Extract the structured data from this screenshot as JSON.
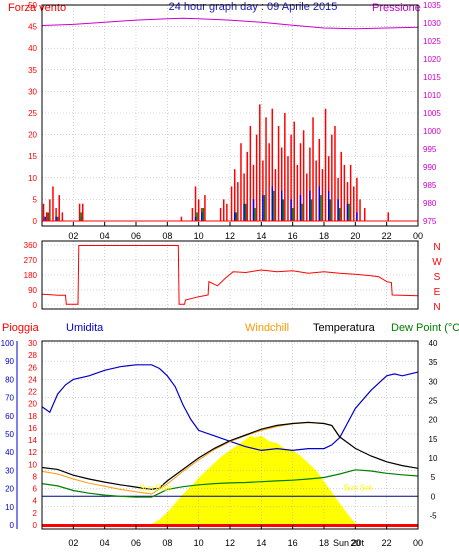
{
  "header": {
    "title": "24 hour graph day : 09 Aprile 2015",
    "left_label": "Forza vento",
    "right_label": "Pressione"
  },
  "colors": {
    "wind": "#ff0000",
    "gust": "#008000",
    "speed2": "#0000ff",
    "pressure": "#cc00cc",
    "direction": "#ff0000",
    "humidity": "#0000cc",
    "windchill": "#ff9900",
    "temperature": "#000000",
    "dewpoint": "#008000",
    "sun": "#ffff00",
    "rain": "#ff0000",
    "axis": "#000000",
    "grid": "#aaaaaa"
  },
  "chart_data": [
    {
      "type": "line",
      "name": "wind-pressure",
      "x_ticks": [
        "02",
        "04",
        "06",
        "08",
        "10",
        "12",
        "14",
        "16",
        "18",
        "20",
        "22",
        "00"
      ],
      "left_axis": {
        "label": "Forza vento",
        "ticks": [
          0,
          5,
          10,
          15,
          20,
          25,
          30,
          35,
          40,
          45,
          50
        ],
        "ylim": [
          0,
          50
        ]
      },
      "right_axis": {
        "label": "Pressione",
        "ticks": [
          975,
          980,
          985,
          990,
          995,
          1000,
          1005,
          1010,
          1015,
          1020,
          1025,
          1030,
          1035
        ],
        "ylim": [
          975,
          1035
        ]
      },
      "series": [
        {
          "name": "Pressione",
          "axis": "right",
          "x": [
            0,
            2,
            4,
            6,
            8,
            9,
            10,
            12,
            14,
            16,
            18,
            20,
            22,
            24
          ],
          "values": [
            1029.3,
            1029.6,
            1030.2,
            1030.8,
            1031.2,
            1031.3,
            1031.2,
            1030.8,
            1030.2,
            1029.4,
            1028.6,
            1028.4,
            1028.6,
            1028.8
          ]
        },
        {
          "name": "wind",
          "axis": "left",
          "x": [
            0.1,
            0.3,
            0.5,
            0.7,
            0.9,
            1.1,
            1.3,
            2.4,
            2.6,
            8.9,
            9.6,
            9.8,
            10.0,
            10.2,
            10.4,
            11.4,
            11.6,
            11.8,
            12.1,
            12.3,
            12.5,
            12.7,
            12.9,
            13.1,
            13.3,
            13.5,
            13.7,
            13.9,
            14.1,
            14.3,
            14.5,
            14.7,
            14.9,
            15.1,
            15.3,
            15.5,
            15.7,
            15.9,
            16.1,
            16.3,
            16.5,
            16.7,
            16.9,
            17.1,
            17.3,
            17.5,
            17.7,
            17.9,
            18.1,
            18.3,
            18.5,
            18.7,
            18.9,
            19.1,
            19.3,
            19.5,
            19.7,
            19.9,
            20.1,
            20.3,
            20.6,
            22.1
          ],
          "values": [
            4,
            2,
            5,
            8,
            3,
            6,
            2,
            4,
            4,
            1,
            3,
            8,
            5,
            3,
            6,
            3,
            5,
            4,
            8,
            12,
            9,
            18,
            11,
            16,
            22,
            13,
            20,
            27,
            14,
            24,
            18,
            26,
            12,
            22,
            17,
            25,
            15,
            20,
            23,
            13,
            18,
            21,
            11,
            17,
            24,
            14,
            19,
            12,
            26,
            15,
            20,
            22,
            10,
            16,
            13,
            9,
            13,
            8,
            10,
            5,
            3,
            2
          ]
        },
        {
          "name": "gust",
          "axis": "left",
          "x": [
            0.4,
            1.0,
            2.5,
            9.9,
            10.3,
            12.4,
            13.0,
            13.6,
            14.2,
            14.8,
            15.4,
            16.0,
            16.6,
            17.2,
            17.8,
            18.4,
            19.0,
            19.6
          ],
          "values": [
            2,
            1,
            2,
            2,
            3,
            2,
            4,
            3,
            6,
            7,
            5,
            3,
            4,
            5,
            6,
            5,
            3,
            4
          ]
        },
        {
          "name": "speed2",
          "axis": "left",
          "x": [
            0.2,
            0.9,
            2.5,
            9.8,
            10.2,
            12.3,
            12.9,
            13.5,
            14.1,
            14.7,
            15.3,
            15.9,
            16.5,
            17.1,
            17.7,
            18.3,
            18.9,
            19.5,
            20.1
          ],
          "values": [
            1,
            1,
            1,
            1,
            2,
            2,
            4,
            5,
            6,
            8,
            7,
            5,
            6,
            7,
            8,
            7,
            5,
            4,
            2
          ]
        }
      ]
    },
    {
      "type": "line",
      "name": "wind-direction",
      "right_labels": [
        "N",
        "W",
        "S",
        "E",
        "N"
      ],
      "left_axis": {
        "ticks": [
          0,
          90,
          180,
          270,
          360
        ],
        "ylim": [
          0,
          360
        ]
      },
      "series": [
        {
          "name": "direction",
          "x": [
            0,
            0.6,
            1.0,
            1.5,
            1.55,
            2.3,
            2.35,
            8.7,
            8.75,
            9.1,
            9.15,
            10.0,
            10.6,
            10.65,
            11.2,
            11.7,
            12.2,
            13.0,
            14.0,
            15.0,
            16.0,
            17.0,
            18.0,
            19.0,
            20.0,
            20.5,
            21.0,
            21.5,
            22.0,
            22.3,
            22.35,
            24.0
          ],
          "values": [
            65,
            62,
            58,
            58,
            5,
            5,
            357,
            357,
            5,
            5,
            30,
            50,
            60,
            140,
            115,
            160,
            200,
            195,
            210,
            200,
            205,
            190,
            200,
            190,
            185,
            180,
            175,
            170,
            140,
            135,
            60,
            55
          ]
        }
      ]
    },
    {
      "type": "line",
      "name": "temperature-humidity",
      "legend": [
        "Pioggia",
        "Umidita",
        "Windchill",
        "Temperatura",
        "Dew Point (°C"
      ],
      "x_ticks": [
        "02",
        "04",
        "06",
        "08",
        "10",
        "12",
        "14",
        "16",
        "18",
        "20",
        "22",
        "00"
      ],
      "sun_labels": [
        "Sun Rise",
        "Sun Set"
      ],
      "sun_label_values": [
        7.1,
        20.0
      ],
      "annotations": [
        "Sun 20t"
      ],
      "humidity_axis": {
        "ticks": [
          0,
          10,
          20,
          30,
          40,
          50,
          60,
          70,
          80,
          90,
          100
        ],
        "ylim": [
          0,
          100
        ]
      },
      "rain_axis": {
        "ticks": [
          0,
          2,
          4,
          6,
          8,
          10,
          12,
          14,
          16,
          18,
          20,
          22,
          24,
          26,
          28,
          30
        ],
        "ylim": [
          0,
          30
        ]
      },
      "temp_axis": {
        "ticks": [
          -5,
          0,
          5,
          10,
          15,
          20,
          25,
          30,
          35,
          40
        ],
        "ylim": [
          -7.5,
          40
        ]
      },
      "series": [
        {
          "name": "Umidita",
          "axis": "humidity",
          "x": [
            0,
            0.5,
            1.0,
            1.5,
            2.0,
            3.0,
            4.0,
            5.0,
            6.0,
            7.0,
            7.5,
            8.0,
            8.5,
            9.0,
            9.5,
            10.0,
            11.0,
            12.0,
            13.0,
            14.0,
            15.0,
            16.0,
            17.0,
            18.0,
            18.5,
            19.0,
            20.0,
            21.0,
            22.0,
            22.5,
            23.0,
            23.5,
            24.0
          ],
          "values": [
            65,
            62,
            72,
            77,
            80,
            82,
            85,
            87,
            88,
            88,
            86,
            82,
            76,
            66,
            58,
            52,
            49,
            46,
            43,
            41,
            42,
            41,
            42,
            42,
            44,
            48,
            64,
            74,
            82,
            83,
            82,
            83,
            84
          ]
        },
        {
          "name": "Temperatura",
          "axis": "temp",
          "x": [
            0,
            1.0,
            2.0,
            3.0,
            4.0,
            5.0,
            6.0,
            7.0,
            7.5,
            8.0,
            9.0,
            10.0,
            11.0,
            12.0,
            13.0,
            14.0,
            15.0,
            16.0,
            17.0,
            18.0,
            18.5,
            19.0,
            20.0,
            21.0,
            22.0,
            23.0,
            24.0
          ],
          "values": [
            7.5,
            7.0,
            5.5,
            4.5,
            3.7,
            3.0,
            2.4,
            1.8,
            2.2,
            4.0,
            7.0,
            10.0,
            12.5,
            14.5,
            16.0,
            17.5,
            18.5,
            19.0,
            19.3,
            19.0,
            18.5,
            15.5,
            12.5,
            10.5,
            9.0,
            8.0,
            7.3
          ]
        },
        {
          "name": "Windchill",
          "axis": "temp",
          "x": [
            0,
            1.0,
            2.0,
            3.0,
            4.0,
            5.0,
            6.0,
            7.0,
            8.0,
            9.0,
            10.0,
            11.0,
            12.0,
            13.0,
            14.0,
            15.0,
            16.0,
            17.0,
            18.0,
            18.5,
            19.0
          ],
          "values": [
            6.5,
            5.8,
            4.5,
            3.4,
            2.6,
            1.8,
            1.2,
            0.6,
            3.2,
            6.5,
            9.5,
            12.2,
            14.3,
            15.8,
            17.2,
            18.2,
            18.9,
            19.2,
            19.0,
            18.4,
            15.4
          ]
        },
        {
          "name": "Dew Point (°C",
          "axis": "temp",
          "x": [
            0,
            1.0,
            2.0,
            3.0,
            4.0,
            5.0,
            6.0,
            7.0,
            8.0,
            9.0,
            10.0,
            11.0,
            12.0,
            13.0,
            14.0,
            15.0,
            16.0,
            17.0,
            18.0,
            19.0,
            20.0,
            21.0,
            22.0,
            23.0,
            24.0
          ],
          "values": [
            3.3,
            2.7,
            1.5,
            0.8,
            0.3,
            0.0,
            -0.2,
            -0.2,
            1.8,
            2.5,
            3.0,
            3.3,
            3.5,
            3.6,
            3.8,
            4.0,
            4.2,
            4.5,
            4.9,
            5.8,
            6.9,
            6.6,
            6.0,
            5.6,
            5.3
          ]
        },
        {
          "name": "Sun",
          "axis": "humidity",
          "x": [
            6.9,
            7.5,
            8.0,
            8.5,
            9.0,
            9.5,
            10.0,
            10.5,
            11.0,
            11.5,
            12.0,
            12.5,
            13.0,
            13.3,
            13.6,
            14.0,
            14.5,
            15.0,
            15.5,
            16.0,
            16.5,
            17.0,
            17.5,
            18.0,
            18.5,
            19.0,
            19.5,
            20.1
          ],
          "values": [
            0,
            3,
            7,
            12,
            17,
            21,
            26,
            30,
            34,
            38,
            41,
            44,
            47,
            49,
            48,
            49,
            46,
            45,
            42,
            41,
            38,
            34,
            30,
            24,
            18,
            12,
            6,
            0
          ]
        },
        {
          "name": "Pioggia",
          "axis": "rain",
          "x": [
            0,
            24
          ],
          "values": [
            0,
            0
          ]
        }
      ]
    }
  ]
}
